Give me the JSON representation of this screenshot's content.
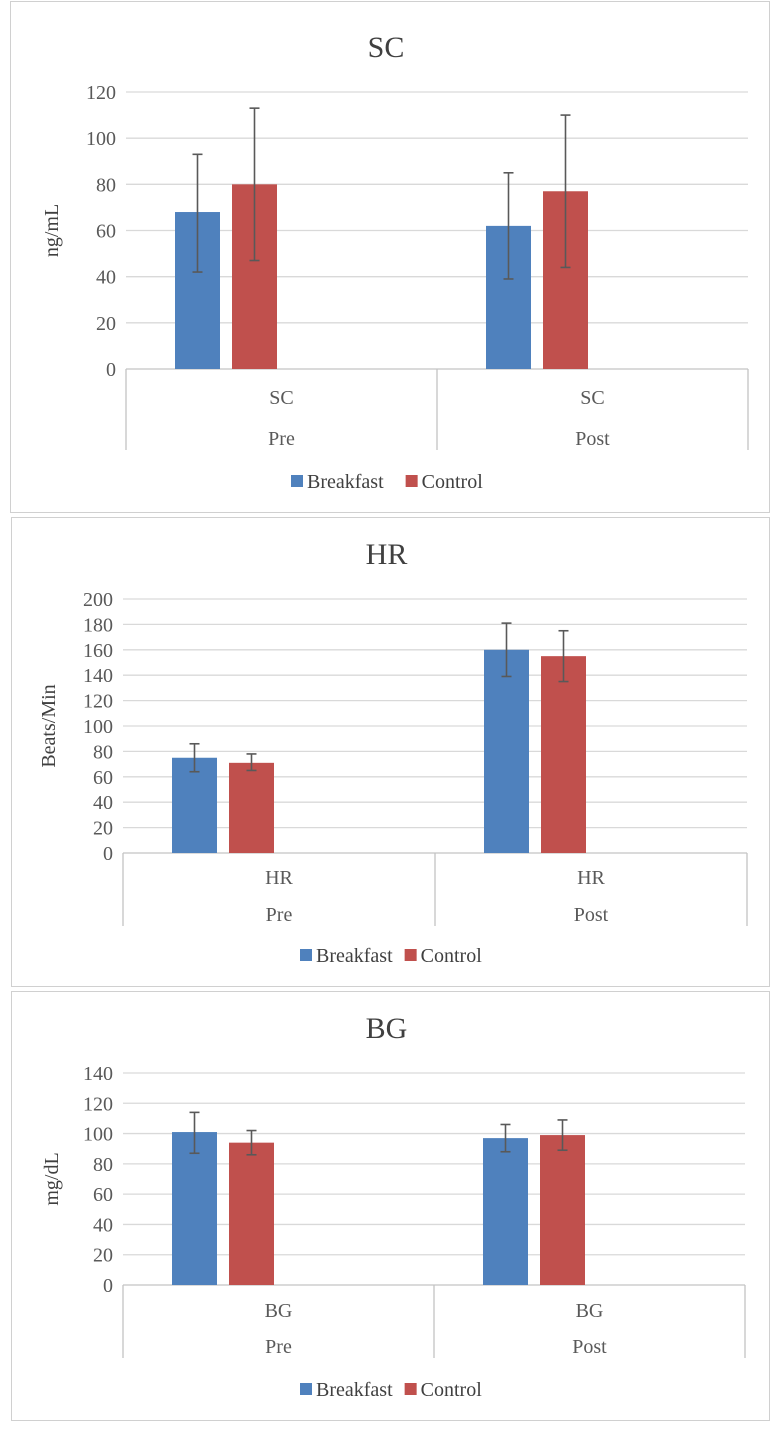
{
  "chart_data": [
    {
      "type": "bar",
      "title": "SC",
      "ylabel": "ng/mL",
      "xlabel": "",
      "ylim": [
        0,
        120
      ],
      "yticks": [
        0,
        20,
        40,
        60,
        80,
        100,
        120
      ],
      "groups": [
        {
          "category": "SC",
          "group": "Pre"
        },
        {
          "category": "SC",
          "group": "Post"
        }
      ],
      "series": [
        {
          "name": "Breakfast",
          "color": "#4F81BD",
          "values": [
            68,
            62
          ],
          "error_low": [
            42,
            39
          ],
          "error_high": [
            93,
            85
          ]
        },
        {
          "name": "Control",
          "color": "#C0504D",
          "values": [
            80,
            77
          ],
          "error_low": [
            47,
            44
          ],
          "error_high": [
            113,
            110
          ]
        }
      ],
      "legend": "bottom",
      "grid": true
    },
    {
      "type": "bar",
      "title": "HR",
      "ylabel": "Beats/Min",
      "xlabel": "",
      "ylim": [
        0,
        200
      ],
      "yticks": [
        0,
        20,
        40,
        60,
        80,
        100,
        120,
        140,
        160,
        180,
        200
      ],
      "groups": [
        {
          "category": "HR",
          "group": "Pre"
        },
        {
          "category": "HR",
          "group": "Post"
        }
      ],
      "series": [
        {
          "name": "Breakfast",
          "color": "#4F81BD",
          "values": [
            75,
            160
          ],
          "error_low": [
            64,
            139
          ],
          "error_high": [
            86,
            181
          ]
        },
        {
          "name": "Control",
          "color": "#C0504D",
          "values": [
            71,
            155
          ],
          "error_low": [
            65,
            135
          ],
          "error_high": [
            78,
            175
          ]
        }
      ],
      "legend": "bottom",
      "grid": true
    },
    {
      "type": "bar",
      "title": "BG",
      "ylabel": "mg/dL",
      "xlabel": "",
      "ylim": [
        0,
        140
      ],
      "yticks": [
        0,
        20,
        40,
        60,
        80,
        100,
        120,
        140
      ],
      "groups": [
        {
          "category": "BG",
          "group": "Pre"
        },
        {
          "category": "BG",
          "group": "Post"
        }
      ],
      "series": [
        {
          "name": "Breakfast",
          "color": "#4F81BD",
          "values": [
            101,
            97
          ],
          "error_low": [
            87,
            88
          ],
          "error_high": [
            114,
            106
          ]
        },
        {
          "name": "Control",
          "color": "#C0504D",
          "values": [
            94,
            99
          ],
          "error_low": [
            86,
            89
          ],
          "error_high": [
            102,
            109
          ]
        }
      ],
      "legend": "bottom",
      "grid": true
    }
  ]
}
